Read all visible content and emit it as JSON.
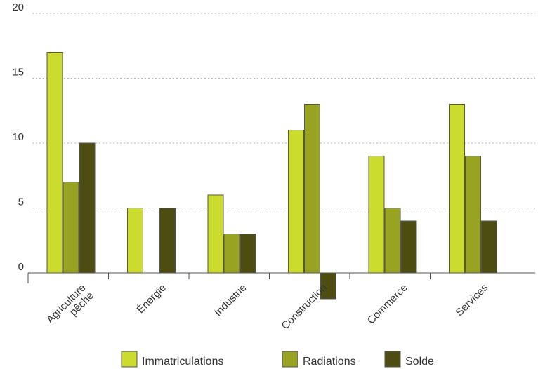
{
  "chart_data": {
    "type": "bar",
    "categories": [
      "Agriculture\npêche",
      "Énergie",
      "Industrie",
      "Construction",
      "Commerce",
      "Services"
    ],
    "series": [
      {
        "name": "Immatriculations",
        "color": "#cbdc2e",
        "values": [
          17,
          5,
          6,
          11,
          9,
          13
        ]
      },
      {
        "name": "Radiations",
        "color": "#98a321",
        "values": [
          7,
          0,
          3,
          13,
          5,
          9
        ]
      },
      {
        "name": "Solde",
        "color": "#4d4d12",
        "values": [
          10,
          5,
          3,
          -2,
          4,
          4
        ]
      }
    ],
    "yticks": [
      0,
      5,
      10,
      15,
      20
    ],
    "ylim": [
      -3,
      20
    ],
    "grid": true,
    "legend_position": "bottom",
    "title": "",
    "xlabel": "",
    "ylabel": ""
  }
}
